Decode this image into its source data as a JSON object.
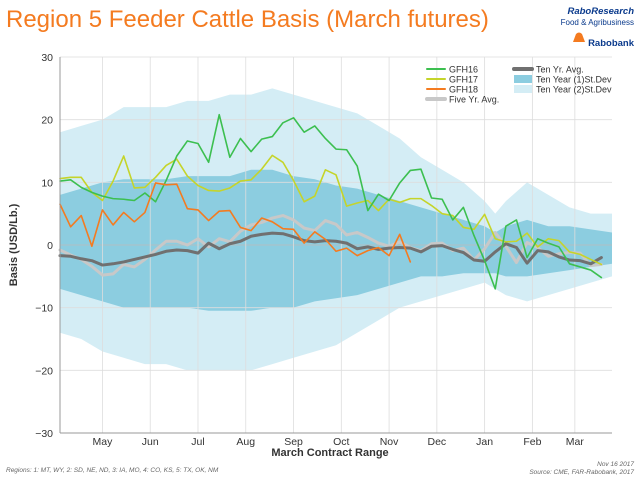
{
  "header": {
    "title": "Region 5 Feeder Cattle Basis  (March futures)"
  },
  "logo": {
    "line1": "RaboResearch",
    "line2": "Food & Agribusiness",
    "line3": "Rabobank"
  },
  "footer": {
    "regions": "Regions:  1: MT, WY, 2: SD, NE, ND, 3: IA, MO, 4: CO, KS, 5: TX, OK, NM",
    "date": "Nov 16 2017",
    "source": "Source: CME, FAR-Rabobank, 2017"
  },
  "colors": {
    "band2": "#d4edf5",
    "band1": "#8ccde0",
    "gfh16": "#3cbf50",
    "gfh17": "#c5d42a",
    "gfh18": "#f47b20",
    "five_yr": "#c8c8c8",
    "ten_yr": "#707070",
    "title": "#f47b20",
    "grid": "#dddddd"
  },
  "chart_data": {
    "type": "line",
    "title": "Region 5 Feeder Cattle Basis  (March futures)",
    "xlabel": "March Contract Range",
    "ylabel": "Basis (USD/Lb.)",
    "ylim": [
      -30,
      30
    ],
    "yticks": [
      30,
      20,
      10,
      0,
      -10,
      -20,
      -30
    ],
    "xlim": [
      0,
      52
    ],
    "xticks": [
      {
        "label": "May",
        "x": 4
      },
      {
        "label": "Jun",
        "x": 8.5
      },
      {
        "label": "Jul",
        "x": 13
      },
      {
        "label": "Aug",
        "x": 17.5
      },
      {
        "label": "Sep",
        "x": 22
      },
      {
        "label": "Oct",
        "x": 26.5
      },
      {
        "label": "Nov",
        "x": 31
      },
      {
        "label": "Dec",
        "x": 35.5
      },
      {
        "label": "Jan",
        "x": 40
      },
      {
        "label": "Feb",
        "x": 44.5
      },
      {
        "label": "Mar",
        "x": 48.5
      }
    ],
    "band_x": [
      0,
      2,
      4,
      6,
      8,
      10,
      12,
      14,
      16,
      18,
      20,
      22,
      24,
      26,
      28,
      30,
      32,
      34,
      36,
      38,
      40,
      41,
      42,
      44,
      46,
      48,
      50,
      52
    ],
    "band_2sd_upper": [
      18,
      19,
      20,
      22,
      22,
      22,
      23,
      23,
      24,
      24,
      25,
      24,
      23,
      22,
      21,
      19,
      17,
      14,
      12,
      10,
      7,
      5,
      7,
      10,
      8,
      6,
      5,
      5
    ],
    "band_2sd_lower": [
      -14,
      -15,
      -17,
      -18,
      -19,
      -19,
      -20,
      -20,
      -20,
      -20,
      -19,
      -18,
      -17,
      -16,
      -14,
      -12,
      -10,
      -9,
      -8,
      -7,
      -6,
      -7,
      -8,
      -9,
      -8,
      -7,
      -6,
      -5
    ],
    "band_1sd_upper": [
      8,
      9,
      10,
      10.5,
      10.5,
      10.5,
      11,
      11,
      11,
      12,
      12,
      11,
      10.5,
      9.5,
      9,
      8,
      7,
      6,
      5,
      4,
      3,
      2,
      3,
      4,
      3,
      3,
      2.5,
      2
    ],
    "band_1sd_lower": [
      -7,
      -8,
      -9,
      -10,
      -10,
      -10,
      -10,
      -10.5,
      -10.5,
      -10.5,
      -10,
      -10,
      -9,
      -8.5,
      -8,
      -7,
      -6,
      -5,
      -5,
      -4.5,
      -4.5,
      -4.5,
      -5,
      -5,
      -4.5,
      -4,
      -3.5,
      -3
    ],
    "legend": [
      "GFH16",
      "GFH17",
      "GFH18",
      "Five Yr. Avg.",
      "Ten Yr. Avg.",
      "Ten Year (1)St.Dev",
      "Ten Year (2)St.Dev"
    ],
    "series": [
      {
        "name": "GFH16",
        "x": [
          0,
          1,
          2,
          3,
          4,
          5,
          6,
          7,
          8,
          9,
          10,
          11,
          12,
          13,
          14,
          15,
          16,
          17,
          18,
          19,
          20,
          21,
          22,
          23,
          24,
          25,
          26,
          27,
          28,
          29,
          30,
          31,
          32,
          33,
          34,
          35,
          36,
          37,
          38,
          39,
          40,
          41,
          42,
          43,
          44,
          45,
          46,
          47,
          48,
          49,
          50,
          51
        ],
        "values": [
          10.2,
          10.4,
          9.2,
          8.4,
          7.8,
          7.4,
          7.3,
          7.1,
          8.3,
          6.9,
          10.3,
          14.2,
          16.6,
          16.2,
          13.2,
          20.8,
          14.0,
          17.0,
          14.9,
          16.9,
          17.3,
          19.5,
          20.3,
          18.0,
          19.0,
          17.0,
          15.3,
          15.2,
          12.6,
          5.5,
          8.1,
          7.1,
          9.9,
          11.9,
          12.1,
          7.5,
          7.3,
          4.0,
          6.0,
          1.5,
          -2.5,
          -7.0,
          3.0,
          4.0,
          -2.0,
          1.0,
          0.3,
          -0.3,
          -3.0,
          -3.5,
          -4.0,
          -5.2
        ]
      },
      {
        "name": "GFH17",
        "x": [
          0,
          1,
          2,
          3,
          4,
          5,
          6,
          7,
          8,
          9,
          10,
          11,
          12,
          13,
          14,
          15,
          16,
          17,
          18,
          19,
          20,
          21,
          22,
          23,
          24,
          25,
          26,
          27,
          28,
          29,
          30,
          31,
          32,
          33,
          34,
          35,
          36,
          37,
          38,
          39,
          40,
          41,
          42,
          43,
          44,
          45,
          46,
          47,
          48,
          49,
          50,
          51
        ],
        "values": [
          10.6,
          10.8,
          10.8,
          8.4,
          7.1,
          10.2,
          14.2,
          9.1,
          9.2,
          10.8,
          12.7,
          13.7,
          11.0,
          9.5,
          8.7,
          8.6,
          9.1,
          10.2,
          10.4,
          12.1,
          14.3,
          13.2,
          10.3,
          6.9,
          7.8,
          12.0,
          11.2,
          6.2,
          6.7,
          7.1,
          5.5,
          7.3,
          6.8,
          7.4,
          7.4,
          6.3,
          5.0,
          4.7,
          2.8,
          2.5,
          4.9,
          1.0,
          0.5,
          0.6,
          1.9,
          -0.3,
          1.0,
          0.7,
          -1.1,
          -1.5,
          -2.3,
          -3.1
        ]
      },
      {
        "name": "GFH18",
        "x": [
          0,
          1,
          2,
          3,
          4,
          5,
          6,
          7,
          8,
          9,
          10,
          11,
          12,
          13,
          14,
          15,
          16,
          17,
          18,
          19,
          20,
          21,
          22,
          23,
          24,
          25,
          26,
          27,
          28,
          29,
          30,
          31,
          32,
          33
        ],
        "values": [
          6.5,
          2.9,
          4.7,
          -0.2,
          5.6,
          3.2,
          5.2,
          3.7,
          5.2,
          9.9,
          9.6,
          9.7,
          5.8,
          5.6,
          3.9,
          5.4,
          5.5,
          2.8,
          2.3,
          4.3,
          3.7,
          2.6,
          2.5,
          0.3,
          2.1,
          0.9,
          -1.0,
          -0.5,
          -1.7,
          -0.9,
          -0.4,
          -1.7,
          1.7,
          -2.7
        ]
      },
      {
        "name": "Five Yr. Avg.",
        "x": [
          0,
          1,
          2,
          3,
          4,
          5,
          6,
          7,
          8,
          9,
          10,
          11,
          12,
          13,
          14,
          15,
          16,
          17,
          18,
          19,
          20,
          21,
          22,
          23,
          24,
          25,
          26,
          27,
          28,
          29,
          30,
          31,
          32,
          33,
          34,
          35,
          36,
          37,
          38,
          39,
          40,
          41,
          42,
          43,
          44,
          45,
          46,
          47,
          48,
          49,
          50,
          51
        ],
        "values": [
          -0.8,
          -1.6,
          -2.3,
          -3.4,
          -4.8,
          -4.6,
          -3.1,
          -3.5,
          -2.3,
          -0.8,
          0.6,
          0.6,
          0.0,
          1.0,
          -0.3,
          1.0,
          0.5,
          2.2,
          3.2,
          3.6,
          4.3,
          4.7,
          4.0,
          2.7,
          2.3,
          3.9,
          3.3,
          1.6,
          2.0,
          1.2,
          0.3,
          -0.2,
          0.5,
          -0.4,
          -0.9,
          0.2,
          0.3,
          -0.9,
          -0.5,
          -2.4,
          -0.6,
          2.0,
          -0.2,
          -2.8,
          0.4,
          -0.4,
          -1.8,
          -1.4,
          -1.2,
          -1.3,
          -3.3,
          -3.1
        ]
      },
      {
        "name": "Ten Yr. Avg.",
        "x": [
          0,
          1,
          2,
          3,
          4,
          5,
          6,
          7,
          8,
          9,
          10,
          11,
          12,
          13,
          14,
          15,
          16,
          17,
          18,
          19,
          20,
          21,
          22,
          23,
          24,
          25,
          26,
          27,
          28,
          29,
          30,
          31,
          32,
          33,
          34,
          35,
          36,
          37,
          38,
          39,
          40,
          41,
          42,
          43,
          44,
          45,
          46,
          47,
          48,
          49,
          50,
          51
        ],
        "values": [
          -1.7,
          -1.8,
          -2.2,
          -2.5,
          -3.2,
          -3.0,
          -2.7,
          -2.3,
          -1.9,
          -1.5,
          -1.0,
          -0.8,
          -0.9,
          -1.3,
          0.3,
          -0.6,
          0.2,
          0.6,
          1.4,
          1.7,
          1.9,
          1.8,
          1.3,
          0.7,
          0.5,
          0.7,
          0.6,
          0.3,
          -0.6,
          -0.3,
          -0.7,
          -0.5,
          -0.4,
          -0.5,
          -1.1,
          -0.2,
          -0.1,
          -0.7,
          -1.2,
          -2.4,
          -2.6,
          -1.1,
          0.2,
          -0.4,
          -2.9,
          -0.9,
          -1.1,
          -1.9,
          -2.4,
          -2.5,
          -3.0,
          -2.0
        ]
      }
    ]
  }
}
